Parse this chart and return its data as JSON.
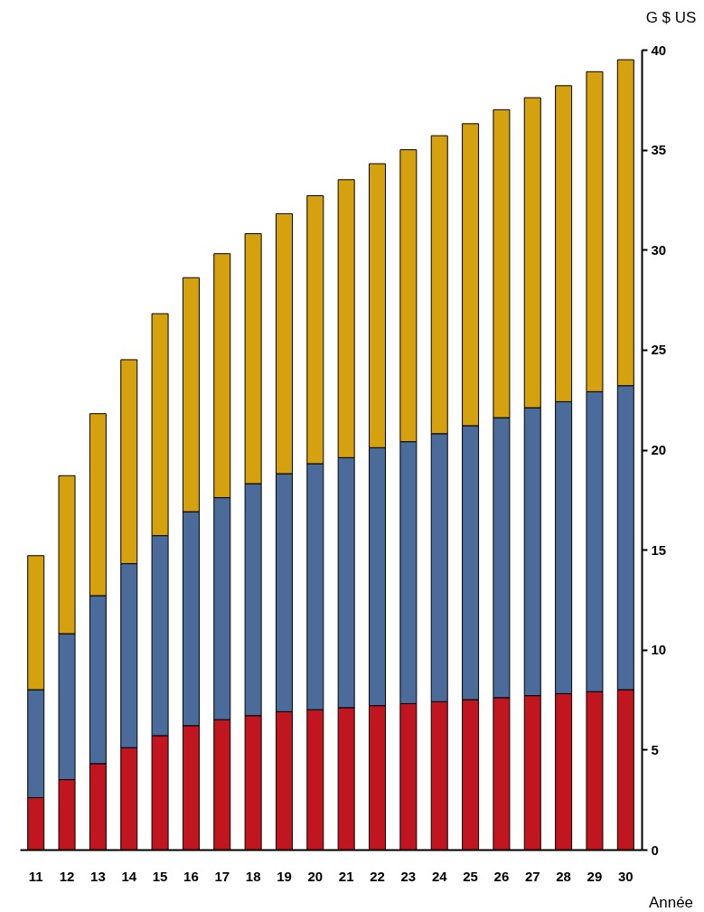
{
  "chart_data": {
    "type": "bar",
    "stacked": true,
    "ylabel": "G $ US",
    "xlabel": "Année",
    "categories": [
      "11",
      "12",
      "13",
      "14",
      "15",
      "16",
      "17",
      "18",
      "19",
      "20",
      "21",
      "22",
      "23",
      "24",
      "25",
      "26",
      "27",
      "28",
      "29",
      "30"
    ],
    "series": [
      {
        "color": "#c1161f",
        "values": [
          2.6,
          3.5,
          4.3,
          5.1,
          5.7,
          6.2,
          6.5,
          6.7,
          6.9,
          7.0,
          7.1,
          7.2,
          7.3,
          7.4,
          7.5,
          7.6,
          7.7,
          7.8,
          7.9,
          8.0
        ]
      },
      {
        "color": "#4b6b9b",
        "values": [
          5.4,
          7.3,
          8.4,
          9.2,
          10.0,
          10.7,
          11.1,
          11.6,
          11.9,
          12.3,
          12.5,
          12.9,
          13.1,
          13.4,
          13.7,
          14.0,
          14.4,
          14.6,
          15.0,
          15.2
        ]
      },
      {
        "color": "#d5a10f",
        "values": [
          6.7,
          7.9,
          9.1,
          10.2,
          11.1,
          11.7,
          12.2,
          12.5,
          13.0,
          13.4,
          13.9,
          14.2,
          14.6,
          14.9,
          15.1,
          15.4,
          15.5,
          15.8,
          16.0,
          16.3
        ]
      }
    ],
    "ylim": [
      0,
      40
    ],
    "yticks": [
      0,
      5,
      10,
      15,
      20,
      25,
      30,
      35,
      40
    ],
    "grid": false
  }
}
